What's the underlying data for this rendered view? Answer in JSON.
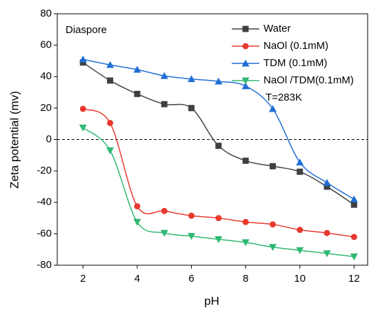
{
  "chart_data": {
    "type": "line",
    "x_label": "pH",
    "y_label": "Zeta potential (mv)",
    "annotations": [
      "Diaspore",
      "T=283K"
    ],
    "x": [
      2,
      3,
      4,
      5,
      6,
      7,
      8,
      9,
      10,
      11,
      12
    ],
    "series": [
      {
        "name": "Water",
        "color": "#404040",
        "marker": "square",
        "values": [
          49,
          37.5,
          29,
          22.5,
          20,
          -4,
          -13.5,
          -17,
          -20.5,
          -30,
          -41.5
        ]
      },
      {
        "name": "NaOl (0.1mM)",
        "color": "#e8392f",
        "marker": "circle",
        "values": [
          19.5,
          10.5,
          -42.5,
          -45.5,
          -48.5,
          -50,
          -52.5,
          -54,
          -57.5,
          -59.5,
          -62
        ]
      },
      {
        "name": "TDM (0.1mM)",
        "color": "#1f6fd4",
        "marker": "triangle-up",
        "values": [
          51,
          47.5,
          44.5,
          40.5,
          38.5,
          37,
          34,
          19.5,
          -14.5,
          -27.5,
          -38
        ]
      },
      {
        "name": "NaOl /TDM(0.1mM)",
        "color": "#2eb872",
        "marker": "triangle-down",
        "values": [
          7.5,
          -7,
          -52.5,
          -59.5,
          -61.5,
          -63.5,
          -65.5,
          -68.5,
          -70.5,
          -72.5,
          -74.5
        ]
      }
    ],
    "reference_line": 0,
    "xlim": [
      1.05,
      12.5
    ],
    "xticks": [
      2,
      4,
      6,
      8,
      10,
      12
    ],
    "ylim": [
      -80,
      80
    ],
    "yticks": [
      -80,
      -60,
      -40,
      -20,
      0,
      20,
      40,
      60,
      80
    ]
  }
}
